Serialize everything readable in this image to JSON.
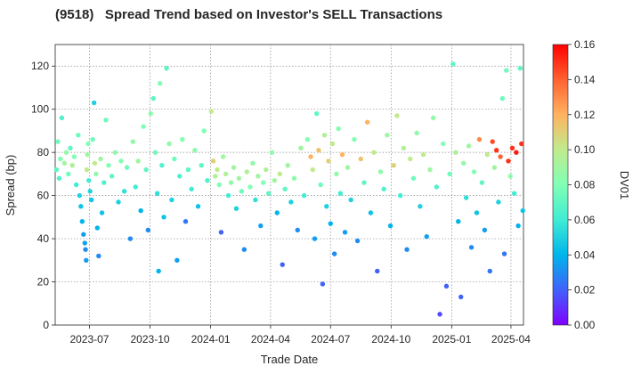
{
  "chart_data": {
    "type": "scatter",
    "title": "(9518)   Spread Trend based on Investor's SELL Transactions",
    "xlabel": "Trade Date",
    "ylabel": "Spread (bp)",
    "colorbar_label": "DV01",
    "x_range": [
      "2023-05-10",
      "2025-04-20"
    ],
    "x_ticks": [
      "2023-07",
      "2023-10",
      "2024-01",
      "2024-04",
      "2024-07",
      "2024-10",
      "2025-01",
      "2025-04"
    ],
    "y_range": [
      0,
      130
    ],
    "y_ticks": [
      0,
      20,
      40,
      60,
      80,
      100,
      120
    ],
    "colorbar_range": [
      0,
      0.16
    ],
    "colorbar_ticks": [
      "0.00",
      "0.02",
      "0.04",
      "0.06",
      "0.08",
      "0.10",
      "0.12",
      "0.14",
      "0.16"
    ],
    "colormap": "rainbow",
    "grid": true,
    "points": [
      [
        "2023-05-12",
        72,
        0.07
      ],
      [
        "2023-05-14",
        85,
        0.075
      ],
      [
        "2023-05-16",
        68,
        0.065
      ],
      [
        "2023-05-18",
        77,
        0.08
      ],
      [
        "2023-05-20",
        96,
        0.065
      ],
      [
        "2023-05-24",
        75,
        0.09
      ],
      [
        "2023-05-27",
        80,
        0.085
      ],
      [
        "2023-05-30",
        70,
        0.075
      ],
      [
        "2023-06-02",
        82,
        0.07
      ],
      [
        "2023-06-05",
        74,
        0.095
      ],
      [
        "2023-06-08",
        78,
        0.08
      ],
      [
        "2023-06-11",
        65,
        0.06
      ],
      [
        "2023-06-14",
        88,
        0.075
      ],
      [
        "2023-06-16",
        60,
        0.05
      ],
      [
        "2023-06-18",
        55,
        0.045
      ],
      [
        "2023-06-20",
        48,
        0.04
      ],
      [
        "2023-06-22",
        42,
        0.035
      ],
      [
        "2023-06-24",
        38,
        0.035
      ],
      [
        "2023-06-25",
        35,
        0.03
      ],
      [
        "2023-06-26",
        30,
        0.035
      ],
      [
        "2023-06-27",
        72,
        0.1
      ],
      [
        "2023-06-28",
        79,
        0.09
      ],
      [
        "2023-06-29",
        84,
        0.08
      ],
      [
        "2023-06-30",
        67,
        0.06
      ],
      [
        "2023-07-02",
        62,
        0.05
      ],
      [
        "2023-07-04",
        58,
        0.045
      ],
      [
        "2023-07-06",
        86,
        0.075
      ],
      [
        "2023-07-08",
        103,
        0.05
      ],
      [
        "2023-07-09",
        75,
        0.1
      ],
      [
        "2023-07-11",
        70,
        0.085
      ],
      [
        "2023-07-13",
        45,
        0.04
      ],
      [
        "2023-07-15",
        32,
        0.03
      ],
      [
        "2023-07-18",
        77,
        0.09
      ],
      [
        "2023-07-20",
        52,
        0.045
      ],
      [
        "2023-07-23",
        66,
        0.065
      ],
      [
        "2023-07-26",
        95,
        0.075
      ],
      [
        "2023-07-30",
        74,
        0.08
      ],
      [
        "2023-08-04",
        69,
        0.07
      ],
      [
        "2023-08-09",
        80,
        0.085
      ],
      [
        "2023-08-14",
        57,
        0.05
      ],
      [
        "2023-08-18",
        76,
        0.08
      ],
      [
        "2023-08-23",
        62,
        0.055
      ],
      [
        "2023-08-27",
        73,
        0.075
      ],
      [
        "2023-09-01",
        40,
        0.03
      ],
      [
        "2023-09-05",
        85,
        0.085
      ],
      [
        "2023-09-09",
        64,
        0.06
      ],
      [
        "2023-09-13",
        76,
        0.09
      ],
      [
        "2023-09-17",
        53,
        0.04
      ],
      [
        "2023-09-21",
        92,
        0.08
      ],
      [
        "2023-09-25",
        72,
        0.07
      ],
      [
        "2023-09-28",
        44,
        0.03
      ],
      [
        "2023-10-02",
        98,
        0.085
      ],
      [
        "2023-10-06",
        105,
        0.07
      ],
      [
        "2023-10-09",
        80,
        0.075
      ],
      [
        "2023-10-12",
        61,
        0.055
      ],
      [
        "2023-10-14",
        25,
        0.04
      ],
      [
        "2023-10-16",
        112,
        0.08
      ],
      [
        "2023-10-19",
        74,
        0.065
      ],
      [
        "2023-10-22",
        50,
        0.045
      ],
      [
        "2023-10-26",
        119,
        0.07
      ],
      [
        "2023-10-30",
        84,
        0.085
      ],
      [
        "2023-11-03",
        58,
        0.05
      ],
      [
        "2023-11-07",
        77,
        0.075
      ],
      [
        "2023-11-11",
        30,
        0.035
      ],
      [
        "2023-11-15",
        69,
        0.065
      ],
      [
        "2023-11-19",
        86,
        0.08
      ],
      [
        "2023-11-24",
        48,
        0.025
      ],
      [
        "2023-11-28",
        72,
        0.07
      ],
      [
        "2023-12-03",
        63,
        0.06
      ],
      [
        "2023-12-08",
        81,
        0.085
      ],
      [
        "2023-12-13",
        55,
        0.045
      ],
      [
        "2023-12-18",
        74,
        0.07
      ],
      [
        "2023-12-22",
        90,
        0.08
      ],
      [
        "2023-12-27",
        67,
        0.065
      ],
      [
        "2024-01-02",
        99,
        0.1
      ],
      [
        "2024-01-05",
        76,
        0.11
      ],
      [
        "2024-01-08",
        69,
        0.095
      ],
      [
        "2024-01-11",
        72,
        0.1
      ],
      [
        "2024-01-14",
        65,
        0.08
      ],
      [
        "2024-01-17",
        43,
        0.02
      ],
      [
        "2024-01-20",
        78,
        0.09
      ],
      [
        "2024-01-24",
        70,
        0.095
      ],
      [
        "2024-01-28",
        60,
        0.06
      ],
      [
        "2024-02-01",
        66,
        0.085
      ],
      [
        "2024-02-05",
        73,
        0.09
      ],
      [
        "2024-02-09",
        54,
        0.05
      ],
      [
        "2024-02-13",
        68,
        0.09
      ],
      [
        "2024-02-17",
        62,
        0.075
      ],
      [
        "2024-02-21",
        35,
        0.03
      ],
      [
        "2024-02-25",
        71,
        0.095
      ],
      [
        "2024-03-01",
        64,
        0.08
      ],
      [
        "2024-03-05",
        75,
        0.085
      ],
      [
        "2024-03-09",
        58,
        0.055
      ],
      [
        "2024-03-13",
        69,
        0.09
      ],
      [
        "2024-03-17",
        46,
        0.035
      ],
      [
        "2024-03-21",
        66,
        0.08
      ],
      [
        "2024-03-25",
        72,
        0.095
      ],
      [
        "2024-03-29",
        61,
        0.07
      ],
      [
        "2024-04-03",
        80,
        0.085
      ],
      [
        "2024-04-07",
        67,
        0.09
      ],
      [
        "2024-04-11",
        52,
        0.04
      ],
      [
        "2024-04-15",
        70,
        0.1
      ],
      [
        "2024-04-19",
        28,
        0.02
      ],
      [
        "2024-04-23",
        63,
        0.07
      ],
      [
        "2024-04-27",
        74,
        0.09
      ],
      [
        "2024-05-02",
        57,
        0.05
      ],
      [
        "2024-05-07",
        68,
        0.085
      ],
      [
        "2024-05-12",
        44,
        0.03
      ],
      [
        "2024-05-17",
        82,
        0.09
      ],
      [
        "2024-05-22",
        60,
        0.06
      ],
      [
        "2024-05-27",
        86,
        0.08
      ],
      [
        "2024-06-01",
        78,
        0.12
      ],
      [
        "2024-06-04",
        72,
        0.1
      ],
      [
        "2024-06-07",
        40,
        0.035
      ],
      [
        "2024-06-10",
        98,
        0.07
      ],
      [
        "2024-06-13",
        81,
        0.115
      ],
      [
        "2024-06-16",
        65,
        0.075
      ],
      [
        "2024-06-19",
        19,
        0.02
      ],
      [
        "2024-06-22",
        88,
        0.095
      ],
      [
        "2024-06-25",
        55,
        0.05
      ],
      [
        "2024-06-28",
        76,
        0.11
      ],
      [
        "2024-07-01",
        47,
        0.04
      ],
      [
        "2024-07-04",
        84,
        0.1
      ],
      [
        "2024-07-07",
        33,
        0.03
      ],
      [
        "2024-07-10",
        70,
        0.085
      ],
      [
        "2024-07-13",
        91,
        0.08
      ],
      [
        "2024-07-16",
        61,
        0.06
      ],
      [
        "2024-07-19",
        79,
        0.12
      ],
      [
        "2024-07-23",
        43,
        0.035
      ],
      [
        "2024-07-27",
        73,
        0.09
      ],
      [
        "2024-08-01",
        58,
        0.05
      ],
      [
        "2024-08-06",
        86,
        0.08
      ],
      [
        "2024-08-11",
        39,
        0.03
      ],
      [
        "2024-08-16",
        77,
        0.115
      ],
      [
        "2024-08-21",
        66,
        0.07
      ],
      [
        "2024-08-26",
        94,
        0.12
      ],
      [
        "2024-08-31",
        52,
        0.045
      ],
      [
        "2024-09-05",
        80,
        0.1
      ],
      [
        "2024-09-10",
        25,
        0.02
      ],
      [
        "2024-09-15",
        71,
        0.085
      ],
      [
        "2024-09-20",
        63,
        0.065
      ],
      [
        "2024-09-25",
        88,
        0.09
      ],
      [
        "2024-09-30",
        46,
        0.04
      ],
      [
        "2024-10-05",
        74,
        0.11
      ],
      [
        "2024-10-10",
        97,
        0.1
      ],
      [
        "2024-10-15",
        60,
        0.06
      ],
      [
        "2024-10-20",
        82,
        0.095
      ],
      [
        "2024-10-25",
        35,
        0.03
      ],
      [
        "2024-10-30",
        77,
        0.1
      ],
      [
        "2024-11-04",
        68,
        0.075
      ],
      [
        "2024-11-09",
        89,
        0.085
      ],
      [
        "2024-11-14",
        55,
        0.05
      ],
      [
        "2024-11-19",
        79,
        0.1
      ],
      [
        "2024-11-24",
        41,
        0.035
      ],
      [
        "2024-11-29",
        72,
        0.09
      ],
      [
        "2024-12-04",
        96,
        0.085
      ],
      [
        "2024-12-09",
        64,
        0.065
      ],
      [
        "2024-12-14",
        5,
        0.015
      ],
      [
        "2024-12-19",
        84,
        0.08
      ],
      [
        "2024-12-24",
        18,
        0.02
      ],
      [
        "2024-12-29",
        70,
        0.075
      ],
      [
        "2025-01-03",
        121,
        0.07
      ],
      [
        "2025-01-07",
        80,
        0.095
      ],
      [
        "2025-01-11",
        48,
        0.04
      ],
      [
        "2025-01-15",
        13,
        0.02
      ],
      [
        "2025-01-19",
        75,
        0.085
      ],
      [
        "2025-01-23",
        59,
        0.055
      ],
      [
        "2025-01-27",
        83,
        0.09
      ],
      [
        "2025-01-31",
        36,
        0.03
      ],
      [
        "2025-02-04",
        71,
        0.08
      ],
      [
        "2025-02-08",
        52,
        0.045
      ],
      [
        "2025-02-12",
        86,
        0.13
      ],
      [
        "2025-02-16",
        66,
        0.07
      ],
      [
        "2025-02-20",
        44,
        0.035
      ],
      [
        "2025-02-24",
        79,
        0.1
      ],
      [
        "2025-02-28",
        25,
        0.025
      ],
      [
        "2025-03-04",
        85,
        0.145
      ],
      [
        "2025-03-07",
        73,
        0.09
      ],
      [
        "2025-03-10",
        81,
        0.15
      ],
      [
        "2025-03-13",
        57,
        0.05
      ],
      [
        "2025-03-16",
        78,
        0.14
      ],
      [
        "2025-03-19",
        105,
        0.075
      ],
      [
        "2025-03-22",
        33,
        0.025
      ],
      [
        "2025-03-25",
        118,
        0.075
      ],
      [
        "2025-03-28",
        76,
        0.15
      ],
      [
        "2025-03-31",
        69,
        0.085
      ],
      [
        "2025-04-03",
        82,
        0.15
      ],
      [
        "2025-04-06",
        61,
        0.06
      ],
      [
        "2025-04-09",
        80,
        0.155
      ],
      [
        "2025-04-12",
        46,
        0.04
      ],
      [
        "2025-04-15",
        119,
        0.07
      ],
      [
        "2025-04-17",
        84,
        0.15
      ],
      [
        "2025-04-19",
        53,
        0.045
      ]
    ]
  }
}
